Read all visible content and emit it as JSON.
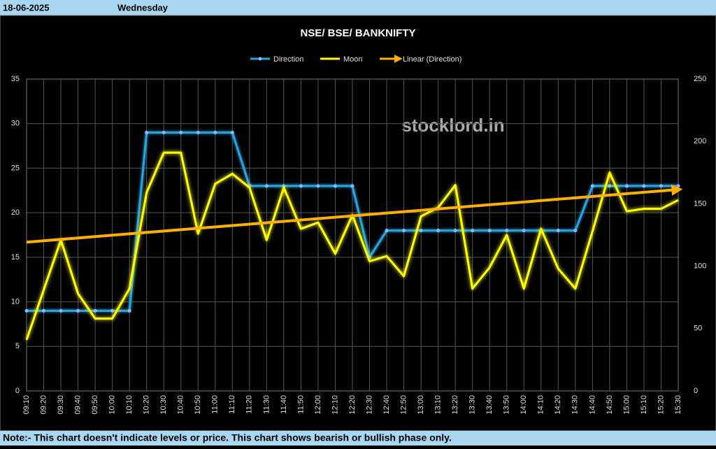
{
  "header": {
    "date": "18-06-2025",
    "day": "Wednesday"
  },
  "footer": {
    "note": "Note:- This chart doesn't indicate levels or price. This chart shows bearish or bullish phase only."
  },
  "chart_data": {
    "type": "line",
    "title": "NSE/ BSE/ BANKNIFTY",
    "watermark": "stocklord.in",
    "categories": [
      "09:10",
      "09:20",
      "09:30",
      "09:40",
      "09:50",
      "10:00",
      "10:10",
      "10:20",
      "10:30",
      "10:40",
      "10:50",
      "11:00",
      "11:10",
      "11:20",
      "11:30",
      "11:40",
      "11:50",
      "12:00",
      "12:10",
      "12:20",
      "12:30",
      "12:40",
      "12:50",
      "13:00",
      "13:10",
      "13:20",
      "13:30",
      "13:40",
      "13:50",
      "14:00",
      "14:10",
      "14:20",
      "14:30",
      "14:40",
      "14:50",
      "15:00",
      "15:10",
      "15:20",
      "15:30"
    ],
    "series": [
      {
        "name": "Direction",
        "color": "#29a3e0",
        "axis": "y",
        "values": [
          9,
          9,
          9,
          9,
          9,
          9,
          9,
          29,
          29,
          29,
          29,
          29,
          29,
          23,
          23,
          23,
          23,
          23,
          23,
          23,
          15,
          18,
          18,
          18,
          18,
          18,
          18,
          18,
          18,
          18,
          18,
          18,
          18,
          23,
          23,
          23,
          23,
          23,
          23
        ]
      },
      {
        "name": "Moon",
        "color": "#ffff00",
        "axis": "y2",
        "values": [
          41,
          81,
          121,
          78,
          58,
          58,
          82,
          159,
          191,
          191,
          126,
          166,
          174,
          163,
          121,
          163,
          130,
          135,
          110,
          141,
          104,
          108,
          92,
          140,
          147,
          165,
          82,
          99,
          125,
          82,
          130,
          98,
          82,
          128,
          175,
          144,
          146,
          146,
          153
        ]
      }
    ],
    "trendline": {
      "name": "Linear (Direction)",
      "color": "#ffb000",
      "start": 16.7,
      "end": 22.6
    },
    "ylim": [
      0,
      35
    ],
    "yticks": [
      0,
      5,
      10,
      15,
      20,
      25,
      30,
      35
    ],
    "y2lim": [
      0,
      250
    ],
    "y2ticks": [
      0,
      50,
      100,
      150,
      200,
      250
    ],
    "grid": true
  }
}
